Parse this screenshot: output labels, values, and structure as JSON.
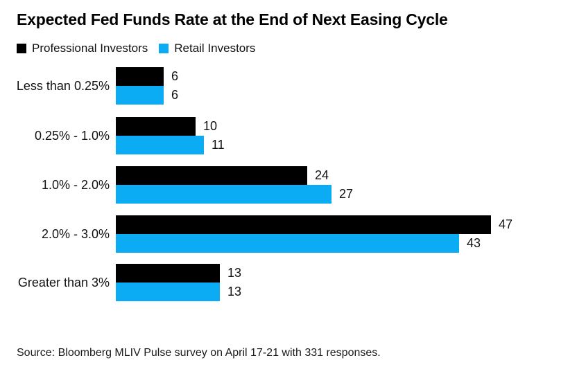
{
  "title": "Expected Fed Funds Rate at the End of Next Easing Cycle",
  "legend": {
    "items": [
      {
        "label": "Professional Investors",
        "color": "#000000"
      },
      {
        "label": "Retail Investors",
        "color": "#0bacf4"
      }
    ]
  },
  "source": "Source: Bloomberg MLIV Pulse survey on April 17-21 with 331 responses.",
  "colors": {
    "professional": "#000000",
    "retail": "#0bacf4",
    "background": "#ffffff",
    "text": "#111111"
  },
  "chart_data": {
    "type": "bar",
    "orientation": "horizontal",
    "title": "Expected Fed Funds Rate at the End of Next Easing Cycle",
    "categories": [
      "Less than 0.25%",
      "0.25% - 1.0%",
      "1.0% - 2.0%",
      "2.0% - 3.0%",
      "Greater than 3%"
    ],
    "series": [
      {
        "name": "Professional Investors",
        "color": "#000000",
        "values": [
          6,
          10,
          24,
          47,
          13
        ]
      },
      {
        "name": "Retail Investors",
        "color": "#0bacf4",
        "values": [
          6,
          11,
          27,
          43,
          13
        ]
      }
    ],
    "value_labels": true,
    "xlim": [
      0,
      47
    ],
    "grid": false,
    "legend_position": "top-left",
    "source": "Source: Bloomberg MLIV Pulse survey on April 17-21 with 331 responses."
  }
}
